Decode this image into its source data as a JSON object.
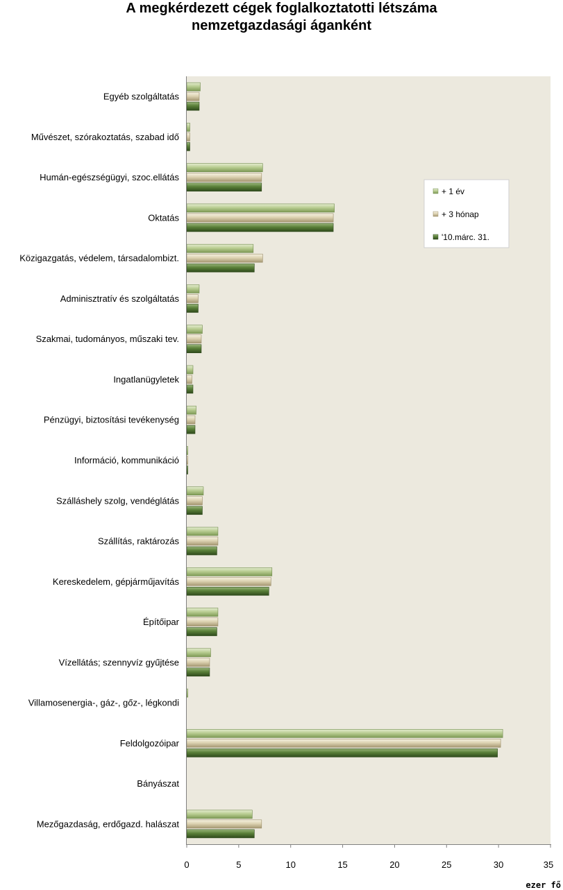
{
  "chart_data": {
    "type": "bar",
    "orientation": "horizontal",
    "title_lines": [
      "A megkérdezett cégek foglalkoztatotti létszáma",
      "nemzetgazdasági áganként"
    ],
    "unit": "ezer   fő",
    "xlim": [
      0,
      35
    ],
    "xticks": [
      "0",
      "5",
      "10",
      "15",
      "20",
      "25",
      "30",
      "35"
    ],
    "grid": false,
    "legend_position": "right",
    "categories": [
      "Egyéb szolgáltatás",
      "Művészet, szórakoztatás, szabad idő",
      "Humán-egészségügyi, szoc.ellátás",
      "Oktatás",
      "Közigazgatás, védelem, társadalombizt.",
      "Adminisztratív és szolgáltatás",
      "Szakmai, tudományos, műszaki tev.",
      "Ingatlanügyletek",
      "Pénzügyi, biztosítási  tevékenység",
      "Információ, kommunikáció",
      "Szálláshely szolg, vendéglátás",
      "Szállítás, raktározás",
      "Kereskedelem, gépjárműjavítás",
      "Építőipar",
      "Vízellátás; szennyvíz gyűjtése",
      "Villamosenergia-, gáz-, gőz-, légkondi",
      "Feldolgozóipar",
      "Bányászat",
      "Mezőgazdaság, erdőgazd. halászat"
    ],
    "series": [
      {
        "name": "+ 1 év",
        "color": "#a8c080",
        "values": [
          1.3,
          0.3,
          7.3,
          14.2,
          6.4,
          1.2,
          1.5,
          0.6,
          0.9,
          0.1,
          1.6,
          3.0,
          8.2,
          3.0,
          2.3,
          0.1,
          30.4,
          0.0,
          6.3
        ]
      },
      {
        "name": "+ 3 hónap",
        "color": "#d8d0b0",
        "values": [
          1.2,
          0.3,
          7.2,
          14.1,
          7.3,
          1.1,
          1.4,
          0.5,
          0.8,
          0.1,
          1.5,
          3.0,
          8.1,
          3.0,
          2.2,
          0.0,
          30.2,
          0.0,
          7.2
        ]
      },
      {
        "name": "'10.márc. 31.",
        "color": "#557a35",
        "values": [
          1.2,
          0.3,
          7.2,
          14.1,
          6.5,
          1.1,
          1.4,
          0.6,
          0.8,
          0.1,
          1.5,
          2.9,
          7.9,
          2.9,
          2.2,
          0.0,
          29.9,
          0.0,
          6.5
        ]
      }
    ]
  }
}
